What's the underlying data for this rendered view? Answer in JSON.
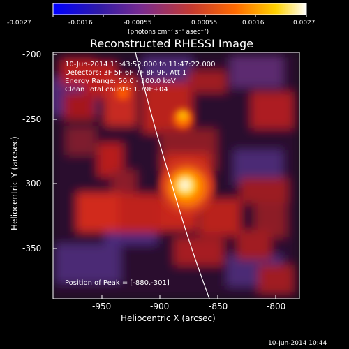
{
  "colorbar": {
    "tick_labels": [
      "-0.0027",
      "-0.0016",
      "-0.00055",
      "0.00055",
      "0.0016",
      "0.0027"
    ],
    "unit_label": "(photons cm⁻² s⁻¹ asec⁻²)",
    "colormap": [
      "#0000ff",
      "#2f1aa8",
      "#7a2b8f",
      "#c63a2f",
      "#ff6a00",
      "#ffd200",
      "#ffffff"
    ]
  },
  "title": "Reconstructed RHESSI Image",
  "annotation": {
    "line1": "10-Jun-2014 11:43:52.000 to 11:47:22.000",
    "line2": "Detectors: 3F 5F 6F 7F 8F 9F, Att 1",
    "line3": "Energy Range: 50.0 - 100.0 keV",
    "line4": "Clean     Total counts: 1.79E+04",
    "peak": "Position of Peak = [-880,-301]"
  },
  "axes": {
    "x_label": "Heliocentric X (arcsec)",
    "y_label": "Heliocentric Y (arcsec)",
    "x_ticks": [
      "-950",
      "-900",
      "-850",
      "-800"
    ],
    "y_ticks": [
      "-200",
      "-250",
      "-300",
      "-350"
    ]
  },
  "footer_timestamp": "10-Jun-2014 10:44",
  "image": {
    "x_range_arcsec": [
      -990,
      -793
    ],
    "y_range_arcsec": [
      -390,
      -198
    ],
    "peak_position_arcsec": [
      -880,
      -301
    ],
    "limb_line_color": "#ffffff"
  }
}
